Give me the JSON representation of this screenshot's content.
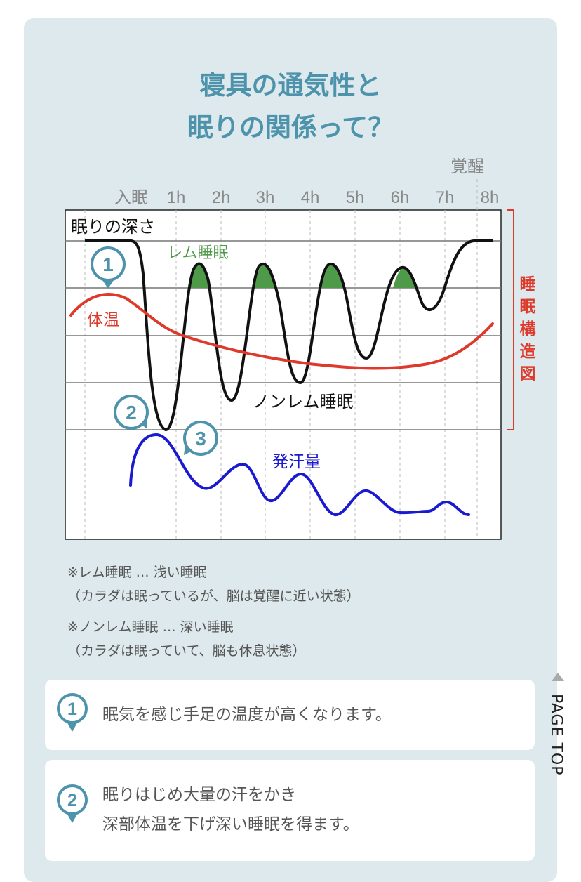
{
  "title": {
    "line1": "寝具の通気性と",
    "line2": "眠りの関係って？"
  },
  "chart": {
    "hours": [
      "入眠",
      "1h",
      "2h",
      "3h",
      "4h",
      "5h",
      "6h",
      "7h",
      "8h"
    ],
    "wake_label": "覚醒",
    "depth_label": "眠りの深さ",
    "rem_label": "レム睡眠",
    "body_temp_label": "体温",
    "nonrem_label": "ノンレム睡眠",
    "sweat_label": "発汗量",
    "structure_label": "睡眠構造図",
    "markers": [
      "1",
      "2",
      "3"
    ],
    "colors": {
      "sleep": "#111111",
      "temp": "#de3a2b",
      "sweat": "#1a1ad0",
      "rem": "#4f9a48",
      "structure": "#de3a2b",
      "marker": "#4d93ac"
    }
  },
  "notes": {
    "rem_title": "※レム睡眠 … 浅い睡眠",
    "rem_desc": "（カラダは眠っているが、脳は覚醒に近い状態）",
    "nonrem_title": "※ノンレム睡眠 … 深い睡眠",
    "nonrem_desc": "（カラダは眠っていて、脳も休息状態）"
  },
  "cards": [
    {
      "num": "1",
      "lines": [
        "眠気を感じ手足の温度が高くなります。"
      ]
    },
    {
      "num": "2",
      "lines": [
        "眠りはじめ大量の汗をかき",
        "深部体温を下げ深い睡眠を得ます。"
      ]
    }
  ],
  "page_top": "PAGE TOP"
}
